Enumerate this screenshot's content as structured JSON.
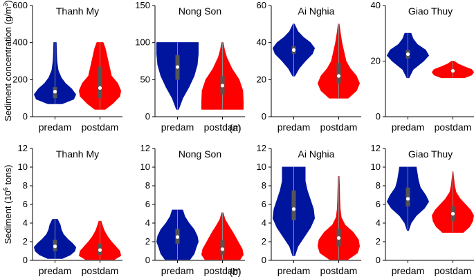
{
  "chart_data": [
    {
      "type": "violin",
      "row": 0,
      "col": 0,
      "title": "Thanh My",
      "ylabel": "Sediment concentration (g/m3)",
      "ylim": [
        0,
        600
      ],
      "yticks": [
        0,
        200,
        400,
        600
      ],
      "categories": [
        "predam",
        "postdam"
      ],
      "series": [
        {
          "name": "predam",
          "color": "#00159e",
          "min": 70,
          "max": 400,
          "median": 135,
          "q1": 100,
          "q3": 160,
          "density": [
            [
              70,
              0.35
            ],
            [
              95,
              0.9
            ],
            [
              120,
              1.0
            ],
            [
              150,
              0.8
            ],
            [
              180,
              0.5
            ],
            [
              210,
              0.3
            ],
            [
              250,
              0.15
            ],
            [
              300,
              0.09
            ],
            [
              350,
              0.07
            ],
            [
              400,
              0.06
            ]
          ]
        },
        {
          "name": "postdam",
          "color": "#ff0000",
          "min": 40,
          "max": 400,
          "median": 155,
          "q1": 100,
          "q3": 270,
          "density": [
            [
              40,
              0.25
            ],
            [
              70,
              0.6
            ],
            [
              110,
              0.95
            ],
            [
              140,
              1.0
            ],
            [
              180,
              0.85
            ],
            [
              220,
              0.55
            ],
            [
              270,
              0.45
            ],
            [
              320,
              0.35
            ],
            [
              370,
              0.25
            ],
            [
              400,
              0.15
            ]
          ]
        }
      ]
    },
    {
      "type": "violin",
      "row": 0,
      "col": 1,
      "title": "Nong Son",
      "ylim": [
        0,
        150
      ],
      "yticks": [
        0,
        50,
        100,
        150
      ],
      "categories": [
        "predam",
        "postdam"
      ],
      "series": [
        {
          "name": "predam",
          "color": "#00159e",
          "min": 10,
          "max": 100,
          "median": 67,
          "q1": 50,
          "q3": 83,
          "density": [
            [
              10,
              0.05
            ],
            [
              25,
              0.25
            ],
            [
              40,
              0.55
            ],
            [
              55,
              0.8
            ],
            [
              70,
              0.95
            ],
            [
              85,
              1.0
            ],
            [
              95,
              1.0
            ],
            [
              100,
              1.0
            ]
          ]
        },
        {
          "name": "postdam",
          "color": "#ff0000",
          "min": 10,
          "max": 100,
          "median": 42,
          "q1": 30,
          "q3": 55,
          "density": [
            [
              10,
              1.0
            ],
            [
              20,
              1.0
            ],
            [
              35,
              0.98
            ],
            [
              50,
              0.8
            ],
            [
              65,
              0.45
            ],
            [
              80,
              0.2
            ],
            [
              90,
              0.1
            ],
            [
              100,
              0.03
            ]
          ]
        }
      ]
    },
    {
      "type": "violin",
      "row": 0,
      "col": 2,
      "title": "Ai Nghia",
      "ylim": [
        0,
        60
      ],
      "yticks": [
        0,
        20,
        40,
        60
      ],
      "categories": [
        "predam",
        "postdam"
      ],
      "series": [
        {
          "name": "predam",
          "color": "#00159e",
          "min": 22,
          "max": 50,
          "median": 36,
          "q1": 34,
          "q3": 38,
          "density": [
            [
              22,
              0.05
            ],
            [
              26,
              0.25
            ],
            [
              30,
              0.55
            ],
            [
              34,
              0.9
            ],
            [
              37,
              1.0
            ],
            [
              40,
              0.8
            ],
            [
              43,
              0.45
            ],
            [
              46,
              0.2
            ],
            [
              50,
              0.03
            ]
          ]
        },
        {
          "name": "postdam",
          "color": "#ff0000",
          "min": 10,
          "max": 50,
          "median": 22,
          "q1": 18,
          "q3": 29,
          "density": [
            [
              10,
              0.45
            ],
            [
              14,
              0.85
            ],
            [
              18,
              1.0
            ],
            [
              22,
              0.85
            ],
            [
              26,
              0.55
            ],
            [
              30,
              0.35
            ],
            [
              35,
              0.25
            ],
            [
              40,
              0.15
            ],
            [
              45,
              0.08
            ],
            [
              50,
              0.02
            ]
          ]
        }
      ]
    },
    {
      "type": "violin",
      "row": 0,
      "col": 3,
      "title": "Giao Thuy",
      "ylim": [
        0,
        40
      ],
      "yticks": [
        0,
        20,
        40
      ],
      "categories": [
        "predam",
        "postdam"
      ],
      "series": [
        {
          "name": "predam",
          "color": "#00159e",
          "min": 14,
          "max": 30,
          "median": 22.5,
          "q1": 21,
          "q3": 24,
          "density": [
            [
              14,
              0.05
            ],
            [
              17,
              0.25
            ],
            [
              20,
              0.75
            ],
            [
              22,
              1.0
            ],
            [
              24,
              0.85
            ],
            [
              26,
              0.45
            ],
            [
              28,
              0.25
            ],
            [
              30,
              0.15
            ]
          ]
        },
        {
          "name": "postdam",
          "color": "#ff0000",
          "min": 14,
          "max": 20,
          "median": 16.5,
          "q1": 16,
          "q3": 17,
          "density": [
            [
              14,
              0.55
            ],
            [
              15,
              0.9
            ],
            [
              16,
              1.0
            ],
            [
              17,
              0.9
            ],
            [
              18,
              0.55
            ],
            [
              19,
              0.25
            ],
            [
              20,
              0.05
            ]
          ]
        }
      ]
    },
    {
      "type": "violin",
      "row": 1,
      "col": 0,
      "title": "Thanh My",
      "ylabel": "Sediment (10^6 tons)",
      "ylim": [
        0,
        12
      ],
      "yticks": [
        0,
        2,
        4,
        6,
        8,
        10,
        12
      ],
      "categories": [
        "predam",
        "postdam"
      ],
      "series": [
        {
          "name": "predam",
          "color": "#00159e",
          "min": 0.2,
          "max": 4.4,
          "median": 1.5,
          "q1": 1.0,
          "q3": 2.2,
          "density": [
            [
              0.2,
              0.35
            ],
            [
              0.6,
              0.75
            ],
            [
              1.0,
              0.95
            ],
            [
              1.4,
              1.0
            ],
            [
              1.8,
              0.85
            ],
            [
              2.3,
              0.6
            ],
            [
              2.8,
              0.4
            ],
            [
              3.3,
              0.3
            ],
            [
              3.8,
              0.25
            ],
            [
              4.4,
              0.12
            ]
          ]
        },
        {
          "name": "postdam",
          "color": "#ff0000",
          "min": 0.1,
          "max": 4.2,
          "median": 1.1,
          "q1": 0.6,
          "q3": 1.8,
          "density": [
            [
              0.1,
              0.7
            ],
            [
              0.5,
              1.0
            ],
            [
              1.0,
              0.95
            ],
            [
              1.5,
              0.75
            ],
            [
              2.0,
              0.55
            ],
            [
              2.6,
              0.35
            ],
            [
              3.2,
              0.2
            ],
            [
              3.7,
              0.12
            ],
            [
              4.2,
              0.05
            ]
          ]
        }
      ]
    },
    {
      "type": "violin",
      "row": 1,
      "col": 1,
      "title": "Nong Son",
      "ylim": [
        0,
        12
      ],
      "yticks": [
        0,
        2,
        4,
        6,
        8,
        10,
        12
      ],
      "categories": [
        "predam",
        "postdam"
      ],
      "series": [
        {
          "name": "predam",
          "color": "#00159e",
          "min": 0.1,
          "max": 5.4,
          "median": 2.5,
          "q1": 1.8,
          "q3": 3.4,
          "density": [
            [
              0.1,
              0.6
            ],
            [
              0.7,
              0.8
            ],
            [
              1.4,
              0.9
            ],
            [
              2.0,
              1.0
            ],
            [
              2.6,
              0.95
            ],
            [
              3.3,
              0.8
            ],
            [
              4.0,
              0.55
            ],
            [
              4.7,
              0.35
            ],
            [
              5.4,
              0.25
            ]
          ]
        },
        {
          "name": "postdam",
          "color": "#ff0000",
          "min": 0.1,
          "max": 5.1,
          "median": 1.2,
          "q1": 0.6,
          "q3": 2.2,
          "density": [
            [
              0.1,
              0.85
            ],
            [
              0.6,
              1.0
            ],
            [
              1.2,
              0.95
            ],
            [
              1.8,
              0.8
            ],
            [
              2.4,
              0.65
            ],
            [
              3.0,
              0.5
            ],
            [
              3.7,
              0.3
            ],
            [
              4.4,
              0.12
            ],
            [
              5.1,
              0.03
            ]
          ]
        }
      ]
    },
    {
      "type": "violin",
      "row": 1,
      "col": 2,
      "title": "Ai Nghia",
      "ylim": [
        0,
        12
      ],
      "yticks": [
        0,
        2,
        4,
        6,
        8,
        10,
        12
      ],
      "categories": [
        "predam",
        "postdam"
      ],
      "series": [
        {
          "name": "predam",
          "color": "#00159e",
          "min": 0.5,
          "max": 10,
          "median": 5.5,
          "q1": 4.3,
          "q3": 7.5,
          "density": [
            [
              0.5,
              0.05
            ],
            [
              1.5,
              0.2
            ],
            [
              2.5,
              0.5
            ],
            [
              3.5,
              0.8
            ],
            [
              4.5,
              1.0
            ],
            [
              5.5,
              0.95
            ],
            [
              6.5,
              0.8
            ],
            [
              7.5,
              0.65
            ],
            [
              8.5,
              0.55
            ],
            [
              9.5,
              0.55
            ],
            [
              10,
              0.55
            ]
          ]
        },
        {
          "name": "postdam",
          "color": "#ff0000",
          "min": 0.1,
          "max": 9,
          "median": 2.4,
          "q1": 1.5,
          "q3": 3.4,
          "density": [
            [
              0.1,
              0.45
            ],
            [
              0.8,
              0.9
            ],
            [
              1.5,
              1.0
            ],
            [
              2.2,
              0.95
            ],
            [
              3.0,
              0.7
            ],
            [
              3.8,
              0.3
            ],
            [
              4.6,
              0.12
            ],
            [
              5.5,
              0.07
            ],
            [
              6.5,
              0.05
            ],
            [
              7.5,
              0.04
            ],
            [
              9,
              0.02
            ]
          ]
        }
      ]
    },
    {
      "type": "violin",
      "row": 1,
      "col": 3,
      "title": "Giao Thuy",
      "ylim": [
        0,
        12
      ],
      "yticks": [
        0,
        2,
        4,
        6,
        8,
        10,
        12
      ],
      "categories": [
        "predam",
        "postdam"
      ],
      "series": [
        {
          "name": "predam",
          "color": "#00159e",
          "min": 3.2,
          "max": 10,
          "median": 6.6,
          "q1": 5.8,
          "q3": 7.8,
          "density": [
            [
              3.2,
              0.03
            ],
            [
              4.0,
              0.15
            ],
            [
              4.8,
              0.4
            ],
            [
              5.6,
              0.8
            ],
            [
              6.3,
              1.0
            ],
            [
              7.0,
              0.85
            ],
            [
              7.8,
              0.6
            ],
            [
              8.6,
              0.5
            ],
            [
              9.3,
              0.45
            ],
            [
              10,
              0.4
            ]
          ]
        },
        {
          "name": "postdam",
          "color": "#ff0000",
          "min": 3.0,
          "max": 9.5,
          "median": 5.0,
          "q1": 4.2,
          "q3": 5.8,
          "density": [
            [
              3.0,
              0.5
            ],
            [
              3.6,
              0.8
            ],
            [
              4.2,
              0.95
            ],
            [
              4.8,
              1.0
            ],
            [
              5.4,
              0.85
            ],
            [
              6.0,
              0.6
            ],
            [
              6.6,
              0.35
            ],
            [
              7.3,
              0.15
            ],
            [
              8.0,
              0.08
            ],
            [
              9.0,
              0.03
            ],
            [
              9.5,
              0.01
            ]
          ]
        }
      ]
    }
  ],
  "labels": {
    "ylabel_top_main": "Sediment concentration (g/m",
    "ylabel_top_sup": "3",
    "ylabel_top_end": ")",
    "ylabel_bottom_main": "Sediment (10",
    "ylabel_bottom_sup": "6",
    "ylabel_bottom_end": " tons)",
    "tag_a": "(a)",
    "tag_b": "(b)"
  },
  "colors": {
    "predam": "#00159e",
    "postdam": "#ff0000",
    "box": "#555555",
    "median_dot": "#ffffff"
  }
}
